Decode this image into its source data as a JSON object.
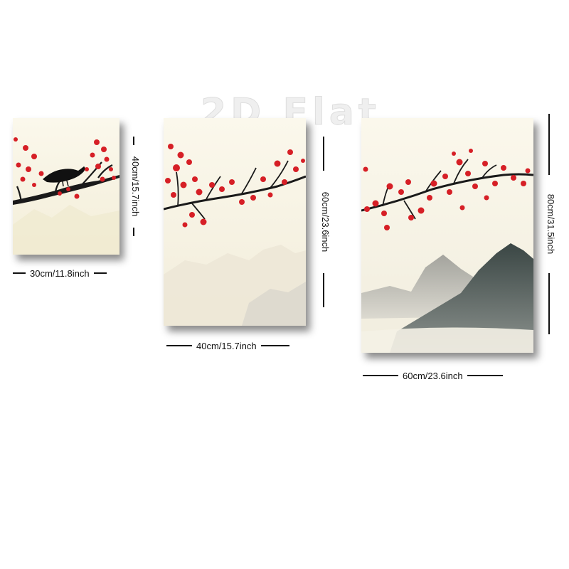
{
  "watermark": "2D Flat",
  "panels": [
    {
      "id": "small",
      "width_label": "30cm/11.8inch",
      "height_label": "40cm/15.7inch"
    },
    {
      "id": "medium",
      "width_label": "40cm/15.7inch",
      "height_label": "60cm/23.6inch"
    },
    {
      "id": "large",
      "width_label": "60cm/23.6inch",
      "height_label": "80cm/31.5inch"
    }
  ],
  "colors": {
    "canvas_bg": "#f7f3e4",
    "blossom": "#d61f26",
    "branch": "#1a1a1a",
    "mountain_dark": "#3e4a47",
    "mountain_light": "#a9aaa6",
    "dimension_line": "#111111"
  }
}
